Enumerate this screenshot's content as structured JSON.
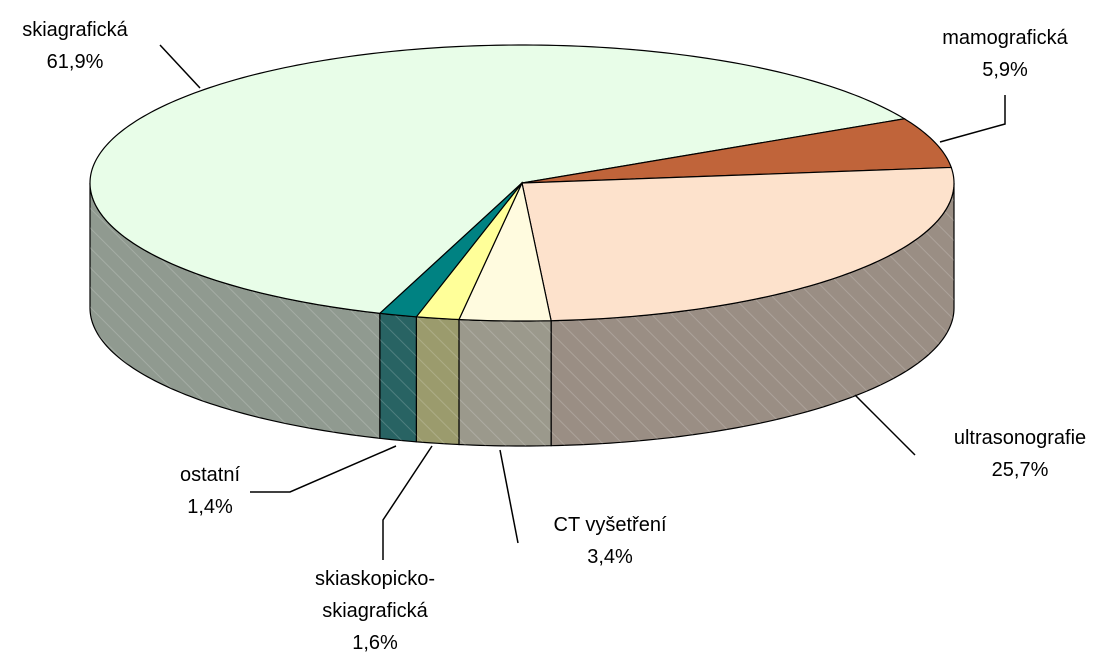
{
  "chart_data": {
    "type": "pie",
    "categories": [
      "skiagrafická",
      "mamografická",
      "ultrasonografie",
      "CT vyšetření",
      "skiaskopicko-skiagrafická",
      "ostatní"
    ],
    "values": [
      61.9,
      5.9,
      25.7,
      3.4,
      1.6,
      1.4
    ],
    "value_labels": [
      "61,9%",
      "5,9%",
      "25,7%",
      "3,4%",
      "1,6%",
      "1,4%"
    ],
    "colors": [
      "#e8fde8",
      "#c0643a",
      "#fde2cc",
      "#fffbdf",
      "#ffff99",
      "#008282"
    ]
  }
}
